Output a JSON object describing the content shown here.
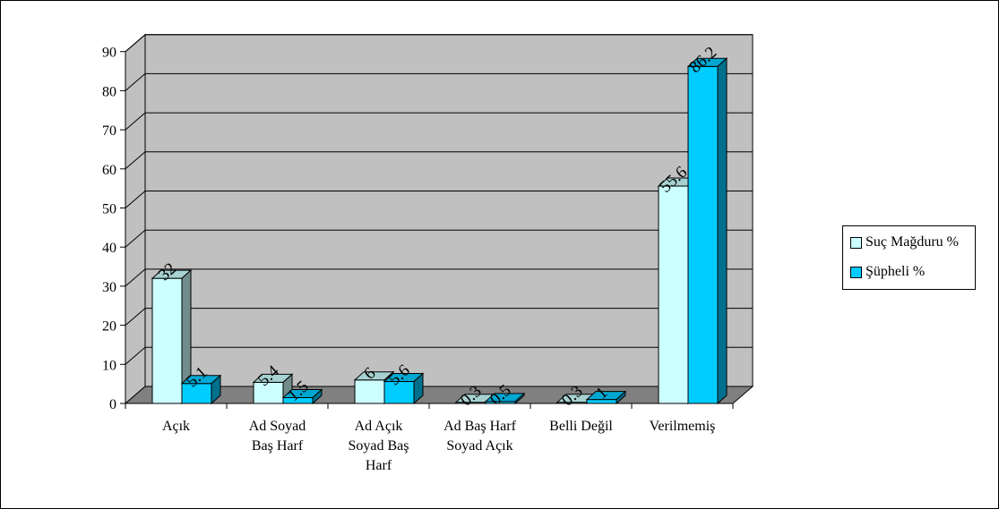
{
  "chart_data": {
    "type": "bar",
    "categories": [
      [
        "Açık"
      ],
      [
        "Ad Soyad",
        "Baş Harf"
      ],
      [
        "Ad Açık",
        "Soyad Baş",
        "Harf"
      ],
      [
        "Ad Baş Harf",
        "Soyad Açık"
      ],
      [
        "Belli Değil"
      ],
      [
        "Verilmemiş"
      ]
    ],
    "series": [
      {
        "name": "Suç Mağduru %",
        "values": [
          32,
          5.4,
          6,
          0.3,
          0.3,
          55.6
        ],
        "labels": [
          "32",
          "5.4",
          "6",
          "0.3",
          "0.3",
          "55.6"
        ],
        "color": "#ccffff"
      },
      {
        "name": "Şüpheli %",
        "values": [
          5.1,
          1.5,
          5.6,
          0.5,
          1,
          86.2
        ],
        "labels": [
          "5.1",
          "1.5",
          "5.6",
          "0.5",
          "1",
          "86.2"
        ],
        "color": "#00ccff"
      }
    ],
    "yticks": [
      "0",
      "10",
      "20",
      "30",
      "40",
      "50",
      "60",
      "70",
      "80",
      "90"
    ],
    "ylim": [
      0,
      90
    ],
    "grid": true,
    "legend_position": "right",
    "title": "",
    "xlabel": "",
    "ylabel": "",
    "colors": {
      "wall": "#c0c0c0",
      "floor": "#808080",
      "gridline": "#000000"
    }
  }
}
